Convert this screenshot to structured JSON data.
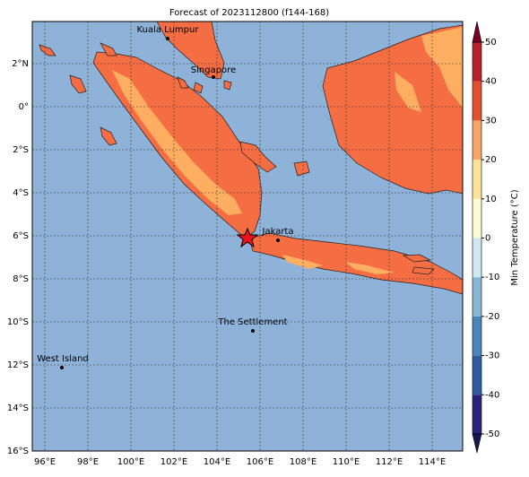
{
  "title": "Forecast of 2023112800 (f144-168)",
  "map": {
    "lat_ticks": [
      {
        "value": 2,
        "label": "2°N"
      },
      {
        "value": 0,
        "label": "0°"
      },
      {
        "value": -2,
        "label": "2°S"
      },
      {
        "value": -4,
        "label": "4°S"
      },
      {
        "value": -6,
        "label": "6°S"
      },
      {
        "value": -8,
        "label": "8°S"
      },
      {
        "value": -10,
        "label": "10°S"
      },
      {
        "value": -12,
        "label": "12°S"
      },
      {
        "value": -14,
        "label": "14°S"
      },
      {
        "value": -16,
        "label": "16°S"
      }
    ],
    "lon_ticks": [
      {
        "value": 96,
        "label": "96°E"
      },
      {
        "value": 98,
        "label": "98°E"
      },
      {
        "value": 100,
        "label": "100°E"
      },
      {
        "value": 102,
        "label": "102°E"
      },
      {
        "value": 104,
        "label": "104°E"
      },
      {
        "value": 106,
        "label": "106°E"
      },
      {
        "value": 108,
        "label": "108°E"
      },
      {
        "value": 110,
        "label": "110°E"
      },
      {
        "value": 112,
        "label": "112°E"
      },
      {
        "value": 114,
        "label": "114°E"
      }
    ],
    "cities": [
      "Kuala Lumpur",
      "Singapore",
      "Jakarta",
      "The Settlement",
      "West Island"
    ]
  },
  "colorbar": {
    "label": "Min Temperature (°C)",
    "lim": [
      -50,
      50
    ],
    "ticks": [
      -50,
      -40,
      -30,
      -20,
      -10,
      0,
      10,
      20,
      30,
      40,
      50
    ],
    "colors": [
      "#27237a",
      "#2f5c9e",
      "#4a86b8",
      "#86b8d6",
      "#cde8f1",
      "#fdfbd3",
      "#fde39a",
      "#f9a66a",
      "#e2502f",
      "#b8202b"
    ],
    "under": "#1b1650",
    "over": "#7a0025"
  }
}
